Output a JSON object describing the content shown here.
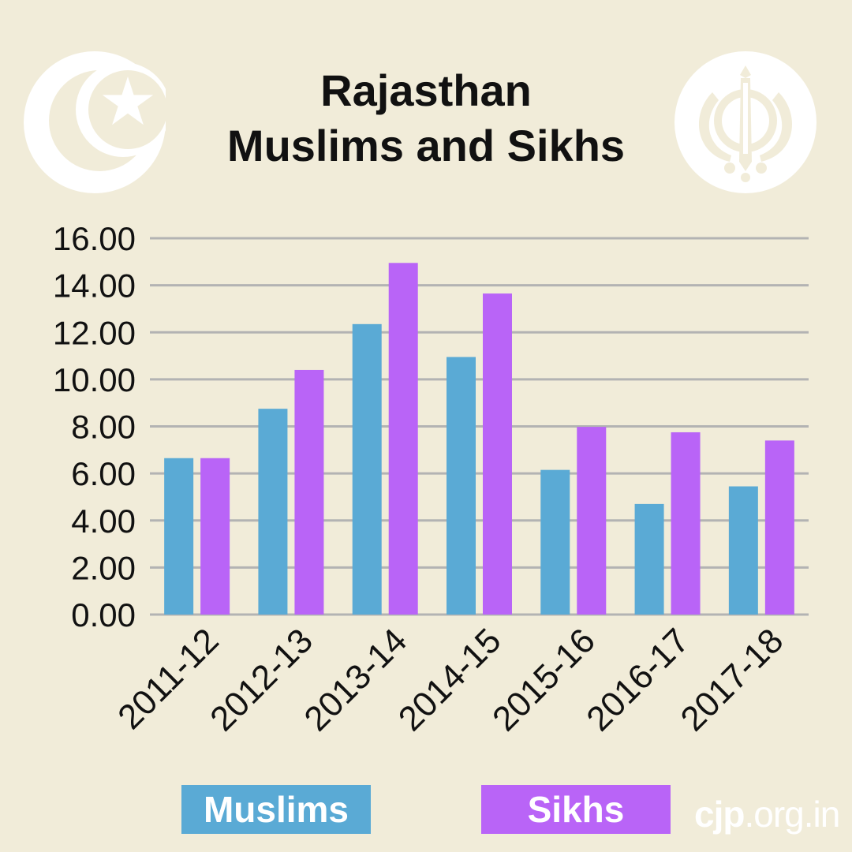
{
  "title_lines": [
    "Rajasthan",
    "Muslims and Sikhs"
  ],
  "icons": {
    "left": "star-and-crescent-icon",
    "right": "khanda-icon"
  },
  "watermark": {
    "bold": "cjp",
    "rest": ".org.in"
  },
  "colors": {
    "background": "#f1ecd9",
    "muslims": "#5aaad5",
    "sikhs": "#b964f7",
    "grid": "#b3b3b3",
    "emblem": "#ffffff"
  },
  "chart_data": {
    "type": "bar",
    "title": "Rajasthan Muslims and Sikhs",
    "xlabel": "",
    "ylabel": "",
    "categories": [
      "2011-12",
      "2012-13",
      "2013-14",
      "2014-15",
      "2015-16",
      "2016-17",
      "2017-18"
    ],
    "series": [
      {
        "name": "Muslims",
        "color": "#5aaad5",
        "values": [
          6.65,
          8.75,
          12.35,
          10.95,
          6.15,
          4.7,
          5.45
        ]
      },
      {
        "name": "Sikhs",
        "color": "#b964f7",
        "values": [
          6.65,
          10.4,
          14.95,
          13.65,
          7.98,
          7.75,
          7.4
        ]
      }
    ],
    "ylim": [
      0,
      16
    ],
    "yticks": [
      "0.00",
      "2.00",
      "4.00",
      "6.00",
      "8.00",
      "10.00",
      "12.00",
      "14.00",
      "16.00"
    ],
    "grid": true,
    "legend_position": "bottom"
  }
}
